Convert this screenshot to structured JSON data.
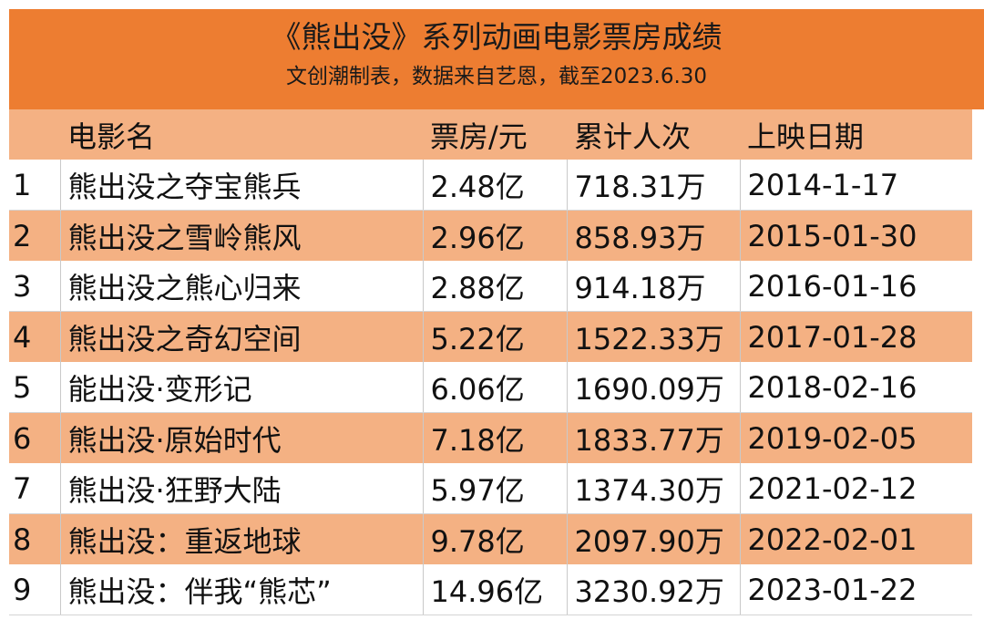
{
  "header": {
    "title": "《熊出没》系列动画电影票房成绩",
    "subtitle": "文创潮制表，数据来自艺恩，截至2023.6.30"
  },
  "columns": [
    "",
    "电影名",
    "票房/元",
    "累计人次",
    "上映日期"
  ],
  "rows": [
    {
      "no": "1",
      "name": "熊出没之夺宝熊兵",
      "box": "2.48亿",
      "viewers": "718.31万",
      "date": "2014-1-17"
    },
    {
      "no": "2",
      "name": "熊出没之雪岭熊风",
      "box": "2.96亿",
      "viewers": "858.93万",
      "date": "2015-01-30"
    },
    {
      "no": "3",
      "name": "熊出没之熊心归来",
      "box": "2.88亿",
      "viewers": "914.18万",
      "date": "2016-01-16"
    },
    {
      "no": "4",
      "name": "熊出没之奇幻空间",
      "box": "5.22亿",
      "viewers": "1522.33万",
      "date": "2017-01-28"
    },
    {
      "no": "5",
      "name": "能出没·变形记",
      "box": "6.06亿",
      "viewers": "1690.09万",
      "date": "2018-02-16"
    },
    {
      "no": "6",
      "name": "熊出没·原始时代",
      "box": "7.18亿",
      "viewers": "1833.77万",
      "date": "2019-02-05"
    },
    {
      "no": "7",
      "name": "熊出没·狂野大陆",
      "box": "5.97亿",
      "viewers": "1374.30万",
      "date": "2021-02-12"
    },
    {
      "no": "8",
      "name": "熊出没：重返地球",
      "box": "9.78亿",
      "viewers": "2097.90万",
      "date": "2022-02-01"
    },
    {
      "no": "9",
      "name": "熊出没：伴我“熊芯”",
      "box": "14.96亿",
      "viewers": "3230.92万",
      "date": "2023-01-22"
    }
  ],
  "colors": {
    "banner": "#ED7D31",
    "band": "#F4B183"
  }
}
